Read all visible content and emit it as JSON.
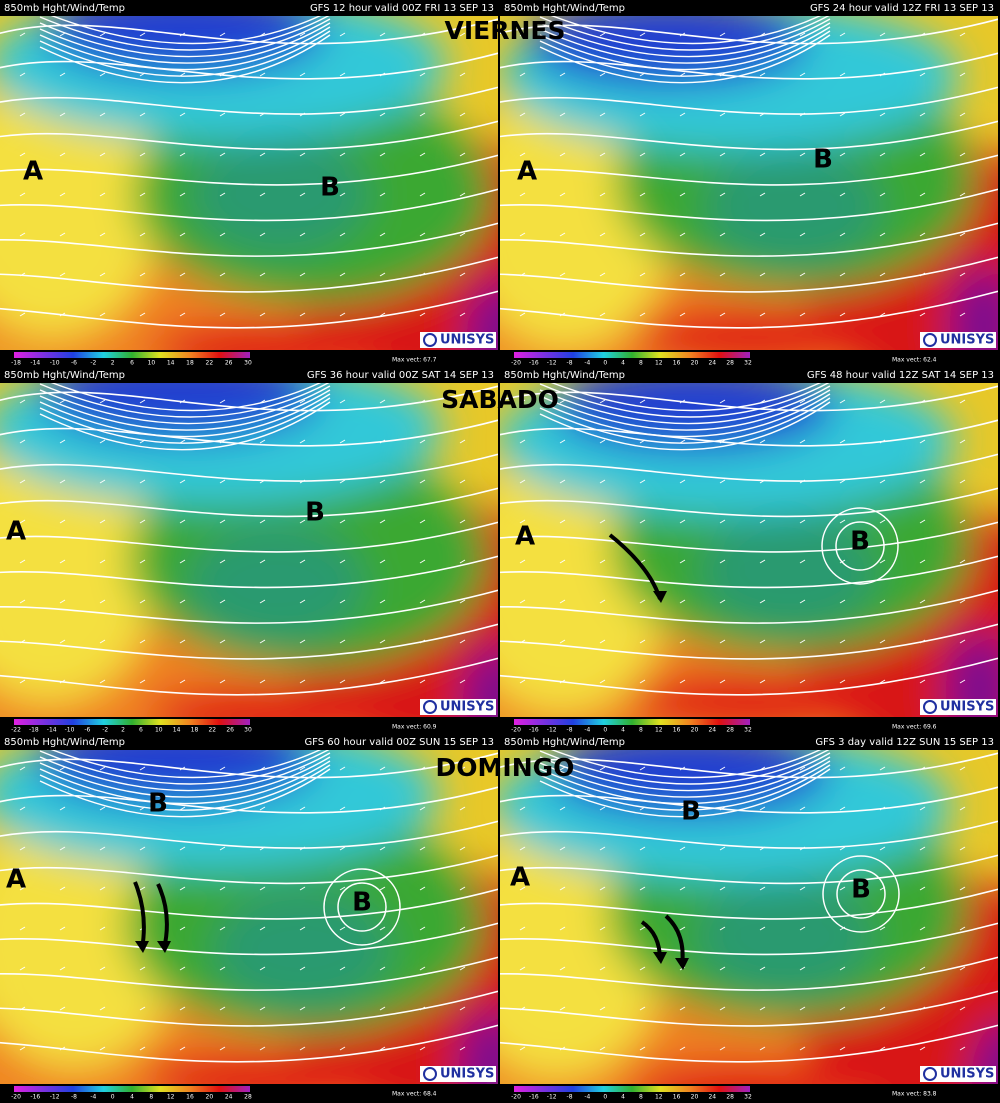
{
  "day_labels": [
    "VIERNES",
    "SABADO",
    "DOMINGO"
  ],
  "panels": [
    {
      "product": "850mb Hght/Wind/Temp",
      "run": "GFS 12 hour valid 00Z FRI 13 SEP 13",
      "scale": [
        -18,
        -14,
        -10,
        -6,
        -2,
        2,
        6,
        10,
        14,
        18,
        22,
        26,
        30
      ],
      "max_vect": "Max vect: 67.7",
      "logo": "UNISYS",
      "markers": [
        "A",
        "B"
      ]
    },
    {
      "product": "850mb Hght/Wind/Temp",
      "run": "GFS 24 hour valid 12Z FRI 13 SEP 13",
      "scale": [
        -20,
        -16,
        -12,
        -8,
        -4,
        0,
        4,
        8,
        12,
        16,
        20,
        24,
        28,
        32
      ],
      "max_vect": "Max vect: 62.4",
      "logo": "UNISYS",
      "markers": [
        "A",
        "B"
      ]
    },
    {
      "product": "850mb Hght/Wind/Temp",
      "run": "GFS 36 hour valid 00Z SAT 14 SEP 13",
      "scale": [
        -22,
        -18,
        -14,
        -10,
        -6,
        -2,
        2,
        6,
        10,
        14,
        18,
        22,
        26,
        30
      ],
      "max_vect": "Max vect: 60.9",
      "logo": "UNISYS",
      "markers": [
        "A",
        "B"
      ]
    },
    {
      "product": "850mb Hght/Wind/Temp",
      "run": "GFS 48 hour valid 12Z SAT 14 SEP 13",
      "scale": [
        -20,
        -16,
        -12,
        -8,
        -4,
        0,
        4,
        8,
        12,
        16,
        20,
        24,
        28,
        32
      ],
      "max_vect": "Max vect: 69.6",
      "logo": "UNISYS",
      "markers": [
        "A",
        "B"
      ]
    },
    {
      "product": "850mb Hght/Wind/Temp",
      "run": "GFS 60 hour valid 00Z SUN 15 SEP 13",
      "scale": [
        -20,
        -16,
        -12,
        -8,
        -4,
        0,
        4,
        8,
        12,
        16,
        20,
        24,
        28
      ],
      "max_vect": "Max vect: 68.4",
      "logo": "UNISYS",
      "markers": [
        "A",
        "B",
        "B"
      ]
    },
    {
      "product": "850mb Hght/Wind/Temp",
      "run": "GFS 3 day valid 12Z SUN 15 SEP 13",
      "scale": [
        -20,
        -16,
        -12,
        -8,
        -4,
        0,
        4,
        8,
        12,
        16,
        20,
        24,
        28,
        32
      ],
      "max_vect": "Max vect: 83.8",
      "logo": "UNISYS",
      "markers": [
        "A",
        "B",
        "B"
      ]
    }
  ]
}
